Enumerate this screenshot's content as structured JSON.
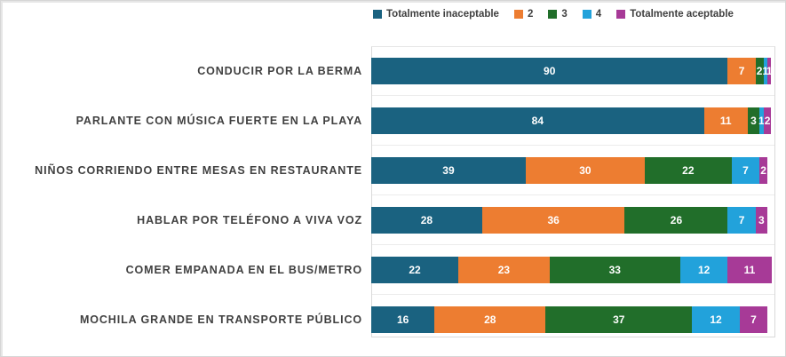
{
  "chart_data": {
    "type": "bar",
    "subtype": "stacked-horizontal-100pct",
    "title": "",
    "xlabel": "",
    "ylabel": "",
    "axis_max": 102,
    "legend_position": "top",
    "grid": "subtle-row-separators",
    "categories": [
      "CONDUCIR POR LA BERMA",
      "PARLANTE CON MÚSICA FUERTE EN LA PLAYA",
      "NIÑOS CORRIENDO ENTRE MESAS EN RESTAURANTE",
      "HABLAR POR TELÉFONO A VIVA VOZ",
      "COMER EMPANADA EN EL BUS/METRO",
      "MOCHILA GRANDE EN TRANSPORTE PÚBLICO"
    ],
    "series": [
      {
        "name": "Totalmente inaceptable",
        "color": "#1a6280",
        "values": [
          90,
          84,
          39,
          28,
          22,
          16
        ]
      },
      {
        "name": "2",
        "color": "#ed7d31",
        "values": [
          7,
          11,
          30,
          36,
          23,
          28
        ]
      },
      {
        "name": "3",
        "color": "#216e2a",
        "values": [
          2,
          3,
          22,
          26,
          33,
          37
        ]
      },
      {
        "name": "4",
        "color": "#22a2db",
        "values": [
          1,
          1,
          7,
          7,
          12,
          12
        ]
      },
      {
        "name": "Totalmente aceptable",
        "color": "#a73a97",
        "values": [
          1,
          2,
          2,
          3,
          11,
          7
        ]
      }
    ]
  },
  "style_colors": {
    "category_label_text": "#404040",
    "legend_text": "#404040",
    "value_label_text": "#ffffff",
    "axis_line": "#d9d9d9",
    "outer_border": "#d6d6d6"
  }
}
